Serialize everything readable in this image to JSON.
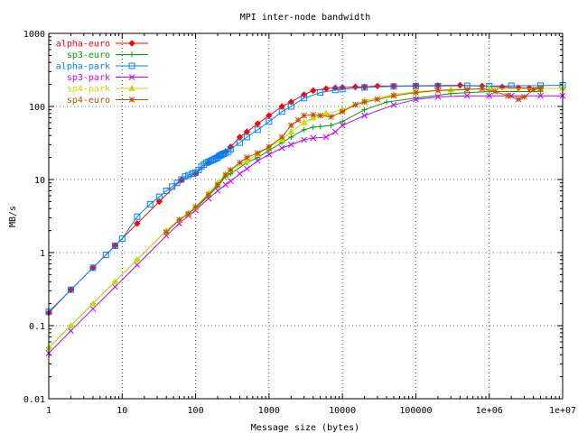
{
  "chart_data": {
    "type": "line",
    "title": "MPI inter-node bandwidth",
    "xlabel": "Message size (bytes)",
    "ylabel": "MB/s",
    "xscale": "log",
    "yscale": "log",
    "xlim": [
      1,
      10000000
    ],
    "ylim": [
      0.01,
      1000
    ],
    "grid": true,
    "legend_position": "top-left",
    "xticks": [
      {
        "value": 1,
        "label": "1"
      },
      {
        "value": 10,
        "label": "10"
      },
      {
        "value": 100,
        "label": "100"
      },
      {
        "value": 1000,
        "label": "1000"
      },
      {
        "value": 10000,
        "label": "10000"
      },
      {
        "value": 100000,
        "label": "100000"
      },
      {
        "value": 1000000,
        "label": "1e+06"
      },
      {
        "value": 10000000,
        "label": "1e+07"
      }
    ],
    "yticks": [
      {
        "value": 0.01,
        "label": "0.01"
      },
      {
        "value": 0.1,
        "label": "0.1"
      },
      {
        "value": 1,
        "label": "1"
      },
      {
        "value": 10,
        "label": "10"
      },
      {
        "value": 100,
        "label": "100"
      },
      {
        "value": 1000,
        "label": "1000"
      }
    ],
    "series": [
      {
        "name": "alpha-euro",
        "color": "#ff0000",
        "marker": "diamond",
        "x": [
          1,
          2,
          4,
          8,
          16,
          32,
          64,
          100,
          150,
          200,
          256,
          300,
          400,
          500,
          700,
          1000,
          1500,
          2000,
          3000,
          4000,
          6000,
          8000,
          10000,
          15000,
          20000,
          30000,
          50000,
          100000,
          200000,
          400000,
          800000,
          1500000,
          2500000,
          3500000,
          5000000
        ],
        "y": [
          0.15,
          0.31,
          0.62,
          1.25,
          2.5,
          5,
          9.8,
          12,
          17,
          21,
          24,
          28,
          38,
          45,
          58,
          75,
          100,
          115,
          145,
          165,
          175,
          180,
          182,
          185,
          185,
          190,
          190,
          192,
          193,
          195,
          190,
          185,
          180,
          178,
          180
        ]
      },
      {
        "name": "sp3-euro",
        "color": "#00a000",
        "marker": "plus",
        "x": [
          1,
          2,
          4,
          8,
          16,
          40,
          60,
          80,
          100,
          150,
          200,
          256,
          300,
          500,
          700,
          1000,
          1500,
          2000,
          3000,
          4000,
          5000,
          7000,
          10000,
          20000,
          40000,
          100000,
          300000,
          1000000,
          5000000
        ],
        "y": [
          0.05,
          0.1,
          0.2,
          0.4,
          0.8,
          2.0,
          2.8,
          3.5,
          4.0,
          6.0,
          8.0,
          11,
          12,
          17,
          20,
          25,
          32,
          38,
          48,
          52,
          53,
          55,
          62,
          90,
          115,
          130,
          150,
          160,
          160
        ]
      },
      {
        "name": "alpha-park",
        "color": "#0080ff",
        "marker": "square",
        "x": [
          1,
          2,
          4,
          6,
          8,
          10,
          16,
          24,
          32,
          40,
          48,
          56,
          64,
          72,
          80,
          90,
          100,
          110,
          120,
          130,
          140,
          150,
          160,
          170,
          180,
          190,
          200,
          210,
          220,
          230,
          240,
          256,
          280,
          300,
          400,
          500,
          700,
          1000,
          1500,
          2000,
          3000,
          5000,
          8000,
          10000,
          20000,
          50000,
          100000,
          200000,
          500000,
          1000000,
          2000000,
          5000000,
          10000000
        ],
        "y": [
          0.155,
          0.31,
          0.62,
          0.93,
          1.24,
          1.55,
          3.1,
          4.6,
          5.8,
          7,
          8,
          9,
          10,
          11,
          11.5,
          12,
          12.5,
          13.5,
          15,
          16,
          17,
          17.5,
          18,
          18.5,
          19,
          19.5,
          20,
          21,
          21.5,
          22,
          22.5,
          23,
          24,
          26,
          32,
          38,
          48,
          62,
          85,
          100,
          130,
          155,
          168,
          172,
          182,
          188,
          190,
          190,
          192,
          190,
          192,
          193,
          195
        ]
      },
      {
        "name": "sp3-park",
        "color": "#c000ff",
        "marker": "cross",
        "x": [
          1,
          2,
          4,
          8,
          16,
          40,
          60,
          80,
          100,
          150,
          200,
          256,
          300,
          400,
          500,
          700,
          1000,
          1500,
          2000,
          3000,
          4000,
          6000,
          8000,
          10000,
          20000,
          50000,
          100000,
          200000,
          500000,
          1000000,
          2000000,
          5000000,
          10000000
        ],
        "y": [
          0.042,
          0.085,
          0.17,
          0.34,
          0.68,
          1.7,
          2.5,
          3.2,
          3.8,
          5.5,
          7,
          8.5,
          9.5,
          12,
          14,
          18,
          22,
          27,
          30,
          35,
          37,
          38,
          45,
          55,
          75,
          105,
          125,
          135,
          140,
          140,
          140,
          140,
          140
        ]
      },
      {
        "name": "sp4-park",
        "color": "#c0e000",
        "marker": "triangle",
        "x": [
          1,
          2,
          4,
          8,
          16,
          40,
          60,
          80,
          100,
          150,
          200,
          256,
          300,
          500,
          700,
          1000,
          1500,
          2000,
          3000,
          4000,
          6000,
          10000,
          20000,
          50000,
          100000,
          300000,
          1000000,
          5000000,
          10000000
        ],
        "y": [
          0.05,
          0.1,
          0.2,
          0.4,
          0.8,
          2.0,
          2.8,
          3.5,
          4.2,
          6.5,
          9,
          12,
          13.5,
          18,
          22,
          28,
          35,
          45,
          60,
          70,
          80,
          90,
          120,
          145,
          160,
          170,
          175,
          175,
          178
        ]
      },
      {
        "name": "sp4-euro",
        "color": "#c05000",
        "marker": "star",
        "x": [
          40,
          60,
          80,
          100,
          150,
          200,
          256,
          300,
          400,
          500,
          700,
          1000,
          1500,
          2000,
          2500,
          3000,
          4000,
          5000,
          7000,
          10000,
          15000,
          20000,
          30000,
          50000,
          100000,
          200000,
          500000,
          800000,
          1200000,
          1800000,
          2500000,
          3000000,
          4000000,
          5000000
        ],
        "y": [
          1.9,
          2.8,
          3.4,
          4.2,
          6.2,
          8.5,
          11.5,
          13.5,
          17,
          20,
          23,
          28,
          38,
          55,
          65,
          75,
          77,
          75,
          72,
          85,
          105,
          115,
          125,
          140,
          155,
          165,
          170,
          175,
          160,
          140,
          125,
          135,
          170,
          175
        ]
      }
    ]
  }
}
